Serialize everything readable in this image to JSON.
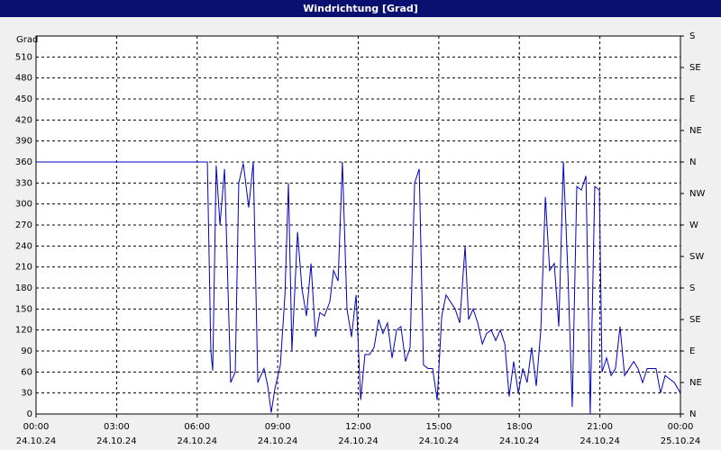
{
  "chart_data": {
    "type": "line",
    "title": "Windrichtung [Grad]",
    "y_label": "Grad",
    "xlim": [
      0,
      24
    ],
    "xticks": [
      {
        "value": 0,
        "label": [
          "00:00",
          "24.10.24"
        ]
      },
      {
        "value": 3,
        "label": [
          "03:00",
          "24.10.24"
        ]
      },
      {
        "value": 6,
        "label": [
          "06:00",
          "24.10.24"
        ]
      },
      {
        "value": 9,
        "label": [
          "09:00",
          "24.10.24"
        ]
      },
      {
        "value": 12,
        "label": [
          "12:00",
          "24.10.24"
        ]
      },
      {
        "value": 15,
        "label": [
          "15:00",
          "24.10.24"
        ]
      },
      {
        "value": 18,
        "label": [
          "18:00",
          "24.10.24"
        ]
      },
      {
        "value": 21,
        "label": [
          "21:00",
          "24.10.24"
        ]
      },
      {
        "value": 24,
        "label": [
          "00:00",
          "25.10.24"
        ]
      }
    ],
    "ylim": [
      0,
      540
    ],
    "yticks": [
      0,
      30,
      60,
      90,
      120,
      150,
      180,
      210,
      240,
      270,
      300,
      330,
      360,
      390,
      420,
      450,
      480,
      510
    ],
    "y2lim": [
      0,
      540
    ],
    "y2ticks": [
      {
        "value": 0,
        "label": "N"
      },
      {
        "value": 45,
        "label": "NE"
      },
      {
        "value": 90,
        "label": "E"
      },
      {
        "value": 135,
        "label": "SE"
      },
      {
        "value": 180,
        "label": "S"
      },
      {
        "value": 225,
        "label": "SW"
      },
      {
        "value": 270,
        "label": "W"
      },
      {
        "value": 315,
        "label": "NW"
      },
      {
        "value": 360,
        "label": "N"
      },
      {
        "value": 405,
        "label": "NE"
      },
      {
        "value": 450,
        "label": "E"
      },
      {
        "value": 495,
        "label": "SE"
      },
      {
        "value": 540,
        "label": "S"
      }
    ],
    "grid": true,
    "series": [
      {
        "color": "#0000c0",
        "x": [
          0,
          6.38,
          6.51,
          6.58,
          6.71,
          6.85,
          7.02,
          7.25,
          7.42,
          7.55,
          7.72,
          7.92,
          8.09,
          8.26,
          8.49,
          8.63,
          8.76,
          8.89,
          9.1,
          9.27,
          9.4,
          9.53,
          9.74,
          9.9,
          10.07,
          10.24,
          10.41,
          10.57,
          10.74,
          10.94,
          11.08,
          11.25,
          11.41,
          11.58,
          11.75,
          11.92,
          12.09,
          12.25,
          12.42,
          12.59,
          12.76,
          12.92,
          13.09,
          13.26,
          13.43,
          13.59,
          13.76,
          13.93,
          14.1,
          14.27,
          14.43,
          14.6,
          14.77,
          14.94,
          15.11,
          15.27,
          15.44,
          15.61,
          15.78,
          15.98,
          16.11,
          16.28,
          16.45,
          16.62,
          16.78,
          16.95,
          17.12,
          17.29,
          17.46,
          17.62,
          17.79,
          17.96,
          18.13,
          18.29,
          18.46,
          18.63,
          18.8,
          18.97,
          19.13,
          19.3,
          19.47,
          19.64,
          19.81,
          19.97,
          20.14,
          20.31,
          20.48,
          20.64,
          20.81,
          20.98,
          21.08,
          21.25,
          21.42,
          21.58,
          21.75,
          21.92,
          22.09,
          22.26,
          22.42,
          22.59,
          22.76,
          22.93,
          23.09,
          23.26,
          23.43,
          23.6,
          23.77,
          24.0
        ],
        "values": [
          360,
          360,
          90,
          62,
          355,
          270,
          350,
          45,
          60,
          330,
          358,
          295,
          360,
          45,
          65,
          40,
          2,
          35,
          70,
          170,
          330,
          90,
          260,
          180,
          140,
          215,
          110,
          145,
          140,
          160,
          205,
          190,
          360,
          150,
          110,
          170,
          20,
          85,
          85,
          95,
          135,
          115,
          130,
          80,
          120,
          125,
          75,
          95,
          330,
          350,
          70,
          65,
          65,
          20,
          140,
          170,
          160,
          150,
          130,
          240,
          135,
          150,
          130,
          100,
          115,
          120,
          105,
          120,
          100,
          25,
          75,
          30,
          65,
          45,
          95,
          40,
          120,
          310,
          205,
          215,
          125,
          360,
          200,
          10,
          325,
          320,
          340,
          0,
          325,
          320,
          60,
          80,
          55,
          65,
          125,
          55,
          65,
          75,
          65,
          45,
          65,
          65,
          65,
          30,
          55,
          50,
          45,
          30
        ]
      }
    ]
  }
}
